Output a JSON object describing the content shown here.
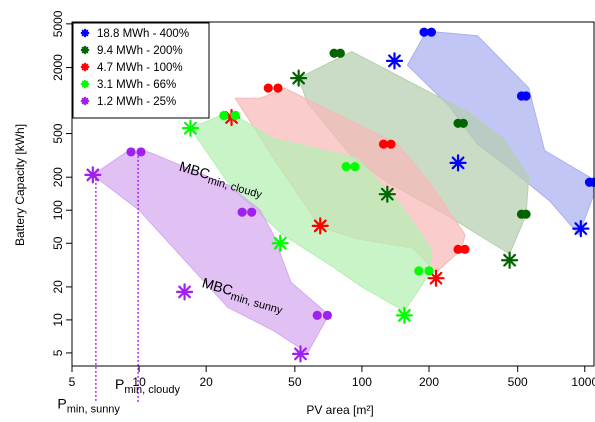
{
  "chart_data": {
    "type": "scatter",
    "xlabel": "PV area [m²]",
    "ylabel": "Battery Capacity [kWh]",
    "x_scale": "log",
    "y_scale": "log",
    "xlim": [
      5,
      1100
    ],
    "ylim": [
      3.8,
      5200
    ],
    "x_ticks": [
      5,
      10,
      20,
      50,
      100,
      200,
      500,
      1000
    ],
    "x_tick_labels": [
      "5",
      "10",
      "20",
      "50",
      "100",
      "200",
      "500",
      "1000"
    ],
    "y_ticks": [
      5,
      10,
      20,
      50,
      100,
      200,
      500,
      2000,
      5000
    ],
    "y_tick_labels": [
      "5",
      "10",
      "20",
      "50",
      "100",
      "200",
      "500",
      "2000",
      "5000"
    ],
    "legend": {
      "position": "top-left",
      "entries": [
        {
          "label": "18.8 MWh - 400%",
          "color": "#0000ff"
        },
        {
          "label": "9.4 MWh - 200%",
          "color": "#006400"
        },
        {
          "label": "4.7 MWh - 100%",
          "color": "#ff0000"
        },
        {
          "label": "3.1 MWh - 66%",
          "color": "#00ff00"
        },
        {
          "label": "1.2 MWh - 25%",
          "color": "#a020f0"
        }
      ]
    },
    "series": [
      {
        "name": "18.8 MWh - 400%",
        "color": "#0000ff",
        "fill": "#aab0f0",
        "region": [
          [
            195,
            4300
          ],
          [
            330,
            3900
          ],
          [
            560,
            1300
          ],
          [
            660,
            350
          ],
          [
            1100,
            190
          ],
          [
            1100,
            140
          ],
          [
            940,
            60
          ],
          [
            700,
            120
          ],
          [
            450,
            250
          ],
          [
            330,
            400
          ],
          [
            245,
            900
          ],
          [
            160,
            2100
          ]
        ],
        "stars": [
          [
            140,
            2300
          ],
          [
            270,
            270
          ],
          [
            960,
            68
          ]
        ],
        "dots": [
          [
            190,
            4200
          ],
          [
            205,
            4200
          ],
          [
            520,
            1100
          ],
          [
            545,
            1100
          ],
          [
            1050,
            180
          ],
          [
            1100,
            180
          ]
        ]
      },
      {
        "name": "9.4 MWh - 200%",
        "color": "#006400",
        "fill": "#b5cfb0",
        "region": [
          [
            52,
            1600
          ],
          [
            90,
            2800
          ],
          [
            300,
            780
          ],
          [
            430,
            450
          ],
          [
            560,
            200
          ],
          [
            545,
            90
          ],
          [
            460,
            40
          ],
          [
            240,
            90
          ],
          [
            130,
            180
          ],
          [
            90,
            310
          ],
          [
            57,
            950
          ]
        ],
        "stars": [
          [
            52,
            1600
          ],
          [
            130,
            140
          ],
          [
            460,
            35
          ]
        ],
        "dots": [
          [
            75,
            2700
          ],
          [
            80,
            2700
          ],
          [
            270,
            620
          ],
          [
            285,
            620
          ],
          [
            520,
            92
          ],
          [
            545,
            92
          ]
        ]
      },
      {
        "name": "4.7 MWh - 100%",
        "color": "#ff0000",
        "fill": "#f8b8b8",
        "region": [
          [
            27,
            1050
          ],
          [
            35,
            1050
          ],
          [
            45,
            1300
          ],
          [
            145,
            400
          ],
          [
            205,
            170
          ],
          [
            290,
            60
          ],
          [
            280,
            44
          ],
          [
            215,
            27
          ],
          [
            170,
            45
          ],
          [
            95,
            55
          ],
          [
            65,
            70
          ],
          [
            40,
            300
          ]
        ],
        "stars": [
          [
            26,
            700
          ],
          [
            65,
            72
          ],
          [
            215,
            24
          ]
        ],
        "dots": [
          [
            38,
            1300
          ],
          [
            42,
            1300
          ],
          [
            125,
            400
          ],
          [
            135,
            400
          ],
          [
            270,
            44
          ],
          [
            290,
            44
          ]
        ]
      },
      {
        "name": "3.1 MWh - 66%",
        "color": "#00ff00",
        "fill": "#b3f0b3",
        "region": [
          [
            17,
            560
          ],
          [
            24,
            750
          ],
          [
            28,
            700
          ],
          [
            40,
            450
          ],
          [
            95,
            300
          ],
          [
            150,
            110
          ],
          [
            205,
            44
          ],
          [
            200,
            26
          ],
          [
            155,
            12
          ],
          [
            100,
            20
          ],
          [
            75,
            30
          ],
          [
            44,
            60
          ],
          [
            26,
            160
          ]
        ],
        "stars": [
          [
            17,
            560
          ],
          [
            43,
            50
          ],
          [
            155,
            11
          ]
        ],
        "dots": [
          [
            24,
            730
          ],
          [
            27,
            730
          ],
          [
            85,
            250
          ],
          [
            93,
            250
          ],
          [
            180,
            28
          ],
          [
            200,
            28
          ]
        ]
      },
      {
        "name": "1.2 MWh - 25%",
        "color": "#a020f0",
        "fill": "#d5a8f0",
        "region": [
          [
            6.2,
            210
          ],
          [
            8.8,
            340
          ],
          [
            11,
            340
          ],
          [
            25,
            170
          ],
          [
            35,
            100
          ],
          [
            40,
            60
          ],
          [
            48,
            22
          ],
          [
            68,
            12
          ],
          [
            69,
            10
          ],
          [
            57,
            5
          ],
          [
            40,
            8
          ],
          [
            25,
            13
          ],
          [
            10,
            100
          ]
        ],
        "stars": [
          [
            6.2,
            210
          ],
          [
            16,
            18
          ],
          [
            53,
            4.9
          ]
        ],
        "dots": [
          [
            9.2,
            340
          ],
          [
            10.2,
            340
          ],
          [
            29,
            96
          ],
          [
            32,
            96
          ],
          [
            63,
            11
          ],
          [
            70,
            11
          ]
        ]
      }
    ],
    "annotations": [
      {
        "main": "MBC",
        "sub": "min, cloudy",
        "x": 15,
        "y": 230
      },
      {
        "main": "MBC",
        "sub": "min, sunny",
        "x": 19,
        "y": 20
      },
      {
        "main": "P",
        "sub": "min, sunny",
        "x": 4.3,
        "y": 1.55
      },
      {
        "main": "P",
        "sub": "min, cloudy",
        "x": 7.8,
        "y": 2.35
      }
    ],
    "guide_lines": [
      {
        "x": 6.4,
        "from_y": 210,
        "color": "#a020f0"
      },
      {
        "x": 9.9,
        "from_y": 340,
        "color": "#a020f0"
      }
    ]
  }
}
